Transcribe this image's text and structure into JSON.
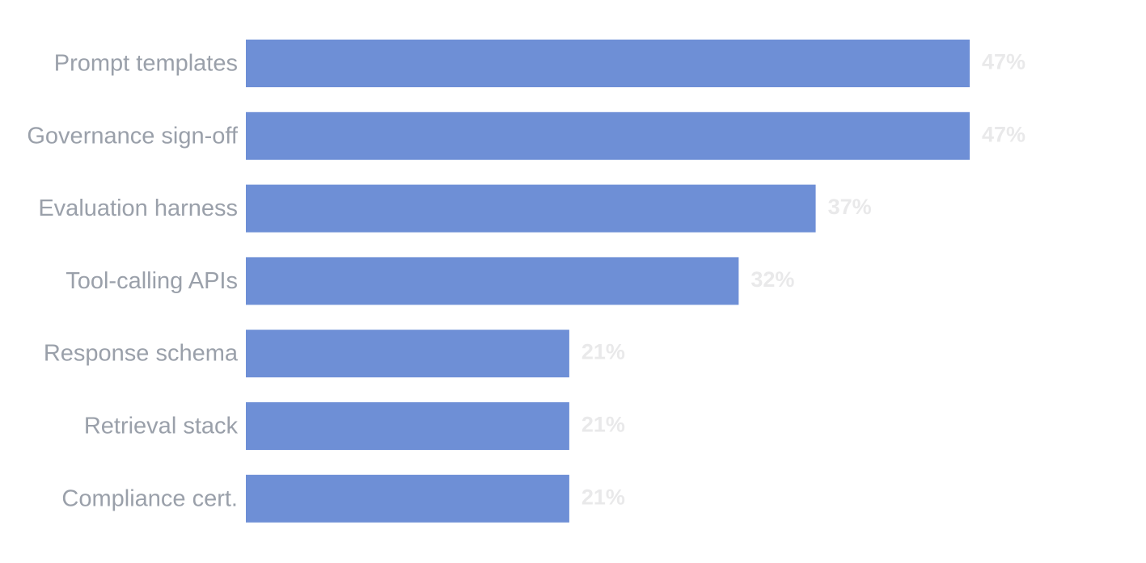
{
  "chart_data": {
    "type": "bar",
    "orientation": "horizontal",
    "title": "",
    "xlabel": "",
    "ylabel": "",
    "categories": [
      "Prompt templates",
      "Governance sign-off",
      "Evaluation harness",
      "Tool-calling APIs",
      "Response schema",
      "Retrieval stack",
      "Compliance cert."
    ],
    "values": [
      47,
      47,
      37,
      32,
      21,
      21,
      21
    ],
    "value_labels": [
      "47%",
      "47%",
      "37%",
      "32%",
      "21%",
      "21%",
      "21%"
    ],
    "value_unit": "%",
    "xlim": [
      0,
      47
    ],
    "grid": false,
    "legend": "none",
    "colors": {
      "bar": "#6e8fd6",
      "category_text": "#9aa0aa",
      "value_text": "#e9e9ea",
      "background": "#ffffff"
    }
  }
}
